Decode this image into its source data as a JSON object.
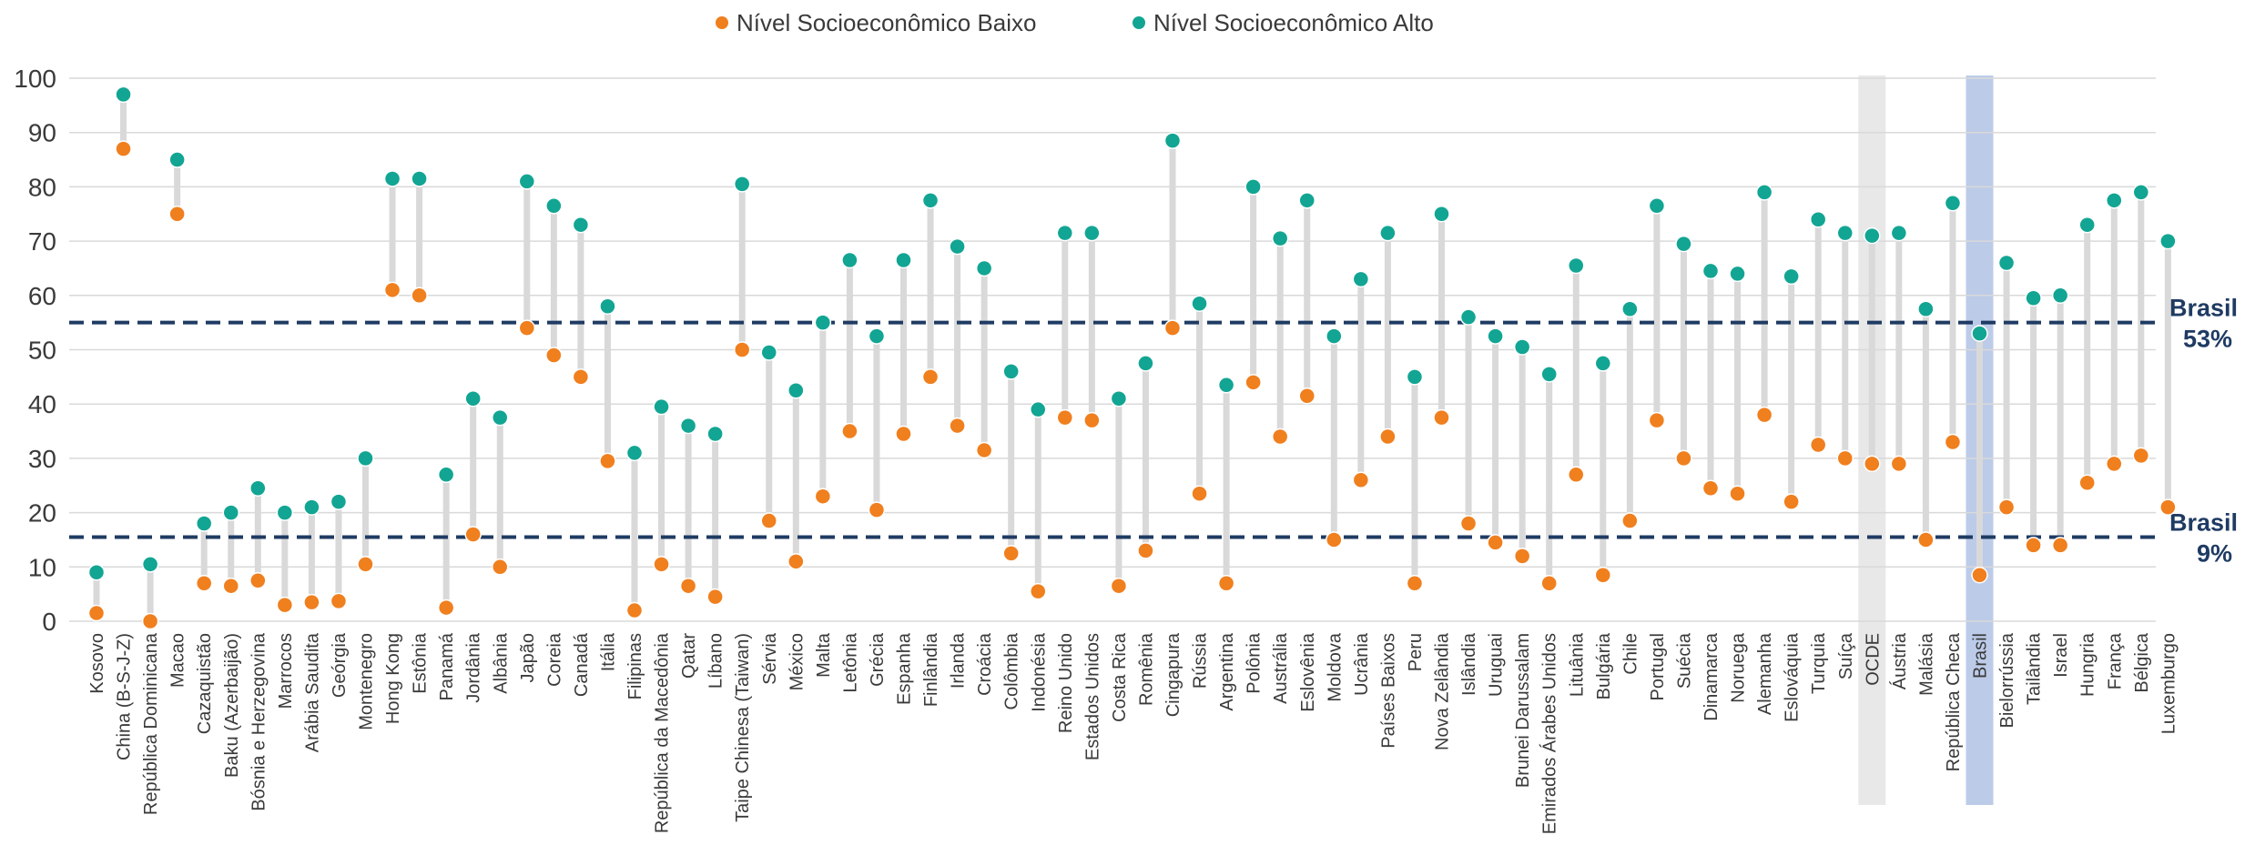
{
  "chart_data": {
    "type": "dot-plot",
    "title": "",
    "xlabel": "",
    "ylabel": "",
    "ylim": [
      0,
      100
    ],
    "yticks": [
      0,
      10,
      20,
      30,
      40,
      50,
      60,
      70,
      80,
      90,
      100
    ],
    "legend_position": "top-center",
    "grid": true,
    "series": [
      {
        "name": "Nível Socioeconômico Baixo",
        "color": "#f07f1e"
      },
      {
        "name": "Nível Socioeconômico Alto",
        "color": "#12a593"
      }
    ],
    "highlight_colors": {
      "OCDE": "#e8e8e8",
      "Brasil": "#bccbe8"
    },
    "categories": [
      "Kosovo",
      "China (B-S-J-Z)",
      "República Dominicana",
      "Macao",
      "Cazaquistão",
      "Baku (Azerbaijão)",
      "Bósnia e Herzegovina",
      "Marrocos",
      "Arábia Saudita",
      "Geórgia",
      "Montenegro",
      "Hong Kong",
      "Estônia",
      "Panamá",
      "Jordânia",
      "Albânia",
      "Japão",
      "Coreia",
      "Canadá",
      "Itália",
      "Filipinas",
      "República da Macedônia",
      "Qatar",
      "Líbano",
      "Taipe Chinesa (Taiwan)",
      "Sérvia",
      "México",
      "Malta",
      "Letônia",
      "Grécia",
      "Espanha",
      "Finlândia",
      "Irlanda",
      "Croácia",
      "Colômbia",
      "Indonésia",
      "Reino Unido",
      "Estados Unidos",
      "Costa Rica",
      "Romênia",
      "Cingapura",
      "Rússia",
      "Argentina",
      "Polônia",
      "Austrália",
      "Eslovênia",
      "Moldova",
      "Ucrânia",
      "Países Baixos",
      "Peru",
      "Nova Zelândia",
      "Islândia",
      "Uruguai",
      "Brunei Darussalam",
      "Emirados Árabes Unidos",
      "Lituânia",
      "Bulgária",
      "Chile",
      "Portugal",
      "Suécia",
      "Dinamarca",
      "Noruega",
      "Alemanha",
      "Eslováquia",
      "Turquia",
      "Suíça",
      "OCDE",
      "Áustria",
      "Malásia",
      "República Checa",
      "Brasil",
      "Bielorrússia",
      "Tailândia",
      "Israel",
      "Hungria",
      "França",
      "Bélgica",
      "Luxemburgo"
    ],
    "low": [
      1.5,
      87,
      0,
      75,
      7,
      6.5,
      7.5,
      3,
      3.5,
      3.7,
      10.5,
      61,
      60,
      2.5,
      16,
      10,
      54,
      49,
      45,
      29.5,
      2,
      10.5,
      6.5,
      4.5,
      50,
      18.5,
      11,
      23,
      35,
      20.5,
      34.5,
      45,
      36,
      31.5,
      12.5,
      5.5,
      37.5,
      37,
      6.5,
      13,
      54,
      23.5,
      7,
      44,
      34,
      41.5,
      15,
      26,
      34,
      7,
      37.5,
      18,
      14.5,
      12,
      7,
      27,
      8.5,
      18.5,
      37,
      30,
      24.5,
      23.5,
      38,
      22,
      32.5,
      30,
      29,
      29,
      15,
      33,
      8.5,
      21,
      14,
      14,
      25.5,
      29,
      30.5,
      21
    ],
    "high": [
      9,
      97,
      10.5,
      85,
      18,
      20,
      24.5,
      20,
      21,
      22,
      30,
      81.5,
      81.5,
      27,
      41,
      37.5,
      81,
      76.5,
      73,
      58,
      31,
      39.5,
      36,
      34.5,
      80.5,
      49.5,
      42.5,
      55,
      66.5,
      52.5,
      66.5,
      77.5,
      69,
      65,
      46,
      39,
      71.5,
      71.5,
      41,
      47.5,
      88.5,
      58.5,
      43.5,
      80,
      70.5,
      77.5,
      52.5,
      63,
      71.5,
      45,
      75,
      56,
      52.5,
      50.5,
      45.5,
      65.5,
      47.5,
      57.5,
      76.5,
      69.5,
      64.5,
      64,
      79,
      63.5,
      74,
      71.5,
      71,
      71.5,
      57.5,
      77,
      53,
      66,
      59.5,
      60,
      73,
      77.5,
      79,
      70
    ],
    "reference_lines": [
      {
        "value": 55,
        "label_line1": "Brasil",
        "label_line2": "53%"
      },
      {
        "value": 15.5,
        "label_line1": "Brasil",
        "label_line2": "9%"
      }
    ]
  }
}
